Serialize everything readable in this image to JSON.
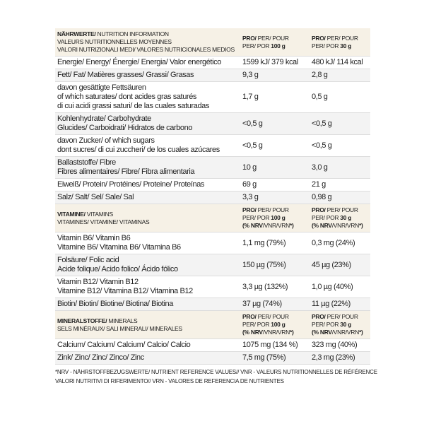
{
  "sections": [
    {
      "header": {
        "label": [
          [
            {
              "bold": "NÄHRWERTE/"
            },
            " NUTRITION INFORMATION"
          ],
          [
            "VALEURS NUTRITIONNELLES MOYENNES"
          ],
          [
            "VALORI NUTRIZIONALI MEDI/ VALORES NUTRICIONALES MEDIOS"
          ]
        ],
        "col1": [
          [
            {
              "bold": "PRO/"
            },
            " PER/ POUR"
          ],
          [
            "PER/ POR ",
            {
              "bold": "100 g"
            }
          ]
        ],
        "col2": [
          [
            {
              "bold": "PRO/"
            },
            " PER/ POUR"
          ],
          [
            "PER/ POR ",
            {
              "bold": "30 g"
            }
          ]
        ]
      },
      "rows": [
        {
          "label": [
            "Energie/ Energy/ Énergie/ Energia/ Valor energético"
          ],
          "v1": "1599 kJ/ 379 kcal",
          "v2": "480 kJ/ 114 kcal"
        },
        {
          "label": [
            "Fett/ Fat/ Matières grasses/ Grassi/ Grasas"
          ],
          "v1": "9,3 g",
          "v2": "2,8 g"
        },
        {
          "label": [
            "davon gesättigte Fettsäuren",
            "of which saturates/ dont acides gras saturés",
            "di cui acidi grassi saturi/ de las cuales saturadas"
          ],
          "v1": "1,7 g",
          "v2": "0,5 g"
        },
        {
          "label": [
            "Kohlenhydrate/ Carbohydrate",
            "Glucides/ Carboidrati/ Hidratos de carbono"
          ],
          "v1": "<0,5 g",
          "v2": "<0,5 g"
        },
        {
          "label": [
            "davon Zucker/ of which sugars",
            "dont sucres/ di cui zuccheri/ de los cuales azúcares"
          ],
          "v1": "<0,5 g",
          "v2": "<0,5 g"
        },
        {
          "label": [
            "Ballaststoffe/ Fibre",
            "Fibres alimentaires/ Fibre/ Fibra alimentaria"
          ],
          "v1": "10 g",
          "v2": "3,0 g"
        },
        {
          "label": [
            "Eiweiß/ Protein/ Protéines/ Proteine/ Proteínas"
          ],
          "v1": "69 g",
          "v2": "21 g"
        },
        {
          "label": [
            "Salz/ Salt/ Sel/ Sale/ Sal"
          ],
          "v1": "3,3 g",
          "v2": "0,98 g"
        }
      ]
    },
    {
      "header": {
        "label": [
          [
            {
              "bold": "VITAMINE/"
            },
            " VITAMINS"
          ],
          [
            "VITAMINES/ VITAMINE/ VITAMINAS"
          ]
        ],
        "col1": [
          [
            {
              "bold": "PRO/"
            },
            " PER/ POUR"
          ],
          [
            "PER/ POR ",
            {
              "bold": "100 g"
            }
          ],
          [
            {
              "bold": "(% NRV"
            },
            "/VNR/VRN",
            {
              "bold": "*)"
            }
          ]
        ],
        "col2": [
          [
            {
              "bold": "PRO/"
            },
            " PER/ POUR"
          ],
          [
            "PER/ POR ",
            {
              "bold": "30 g"
            }
          ],
          [
            {
              "bold": "(% NRV"
            },
            "/VNR/VRN",
            {
              "bold": "*)"
            }
          ]
        ]
      },
      "rows": [
        {
          "label": [
            "Vitamin B6/ Vitamin B6",
            "Vitamine B6/ Vitamina B6/ Vitamina B6"
          ],
          "v1": "1,1 mg (79%)",
          "v2": "0,3 mg (24%)"
        },
        {
          "label": [
            "Folsäure/ Folic acid",
            "Acide folique/ Acido folico/ Ácido fólico"
          ],
          "v1": "150 µg (75%)",
          "v2": "45 µg (23%)"
        },
        {
          "label": [
            "Vitamin B12/ Vitamin B12",
            "Vitamine B12/ Vitamina B12/ Vitamina B12"
          ],
          "v1": "3,3 µg (132%)",
          "v2": "1,0 µg (40%)"
        },
        {
          "label": [
            "Biotin/ Biotin/ Biotine/ Biotina/ Biotina"
          ],
          "v1": "37 µg (74%)",
          "v2": "11 µg (22%)"
        }
      ]
    },
    {
      "header": {
        "label": [
          [
            {
              "bold": "MINERALSTOFFE/"
            },
            " MINERALS"
          ],
          [
            "SELS MINÉRAUX/ SALI MINERALI/ MINERALES"
          ]
        ],
        "col1": [
          [
            {
              "bold": "PRO/"
            },
            " PER/ POUR"
          ],
          [
            "PER/ POR ",
            {
              "bold": "100 g"
            }
          ],
          [
            {
              "bold": "(% NRV"
            },
            "/VNR/VRN",
            {
              "bold": "*)"
            }
          ]
        ],
        "col2": [
          [
            {
              "bold": "PRO/"
            },
            " PER/ POUR"
          ],
          [
            "PER/ POR ",
            {
              "bold": "30 g"
            }
          ],
          [
            {
              "bold": "(% NRV"
            },
            "/VNR/VRN",
            {
              "bold": "*)"
            }
          ]
        ]
      },
      "rows": [
        {
          "label": [
            "Calcium/ Calcium/ Calcium/ Calcio/ Calcio"
          ],
          "v1": "1075 mg (134 %)",
          "v2": "323 mg (40%)"
        },
        {
          "label": [
            "Zink/ Zinc/ Zinc/ Zinco/ Zinc"
          ],
          "v1": "7,5 mg (75%)",
          "v2": "2,3 mg (23%)"
        }
      ]
    }
  ],
  "footnote": [
    "*NRV - NÄHRSTOFFBEZUGSWERTE/ NUTRIENT REFERENCE VALUES// VNR - VALEURS NUTRITIONNELLES DE RÉFÉRENCE",
    "VALORI NUTRITIVI DI RIFERIMENTO// VRN - VALORES DE REFERENCIA DE NUTRIENTES"
  ]
}
